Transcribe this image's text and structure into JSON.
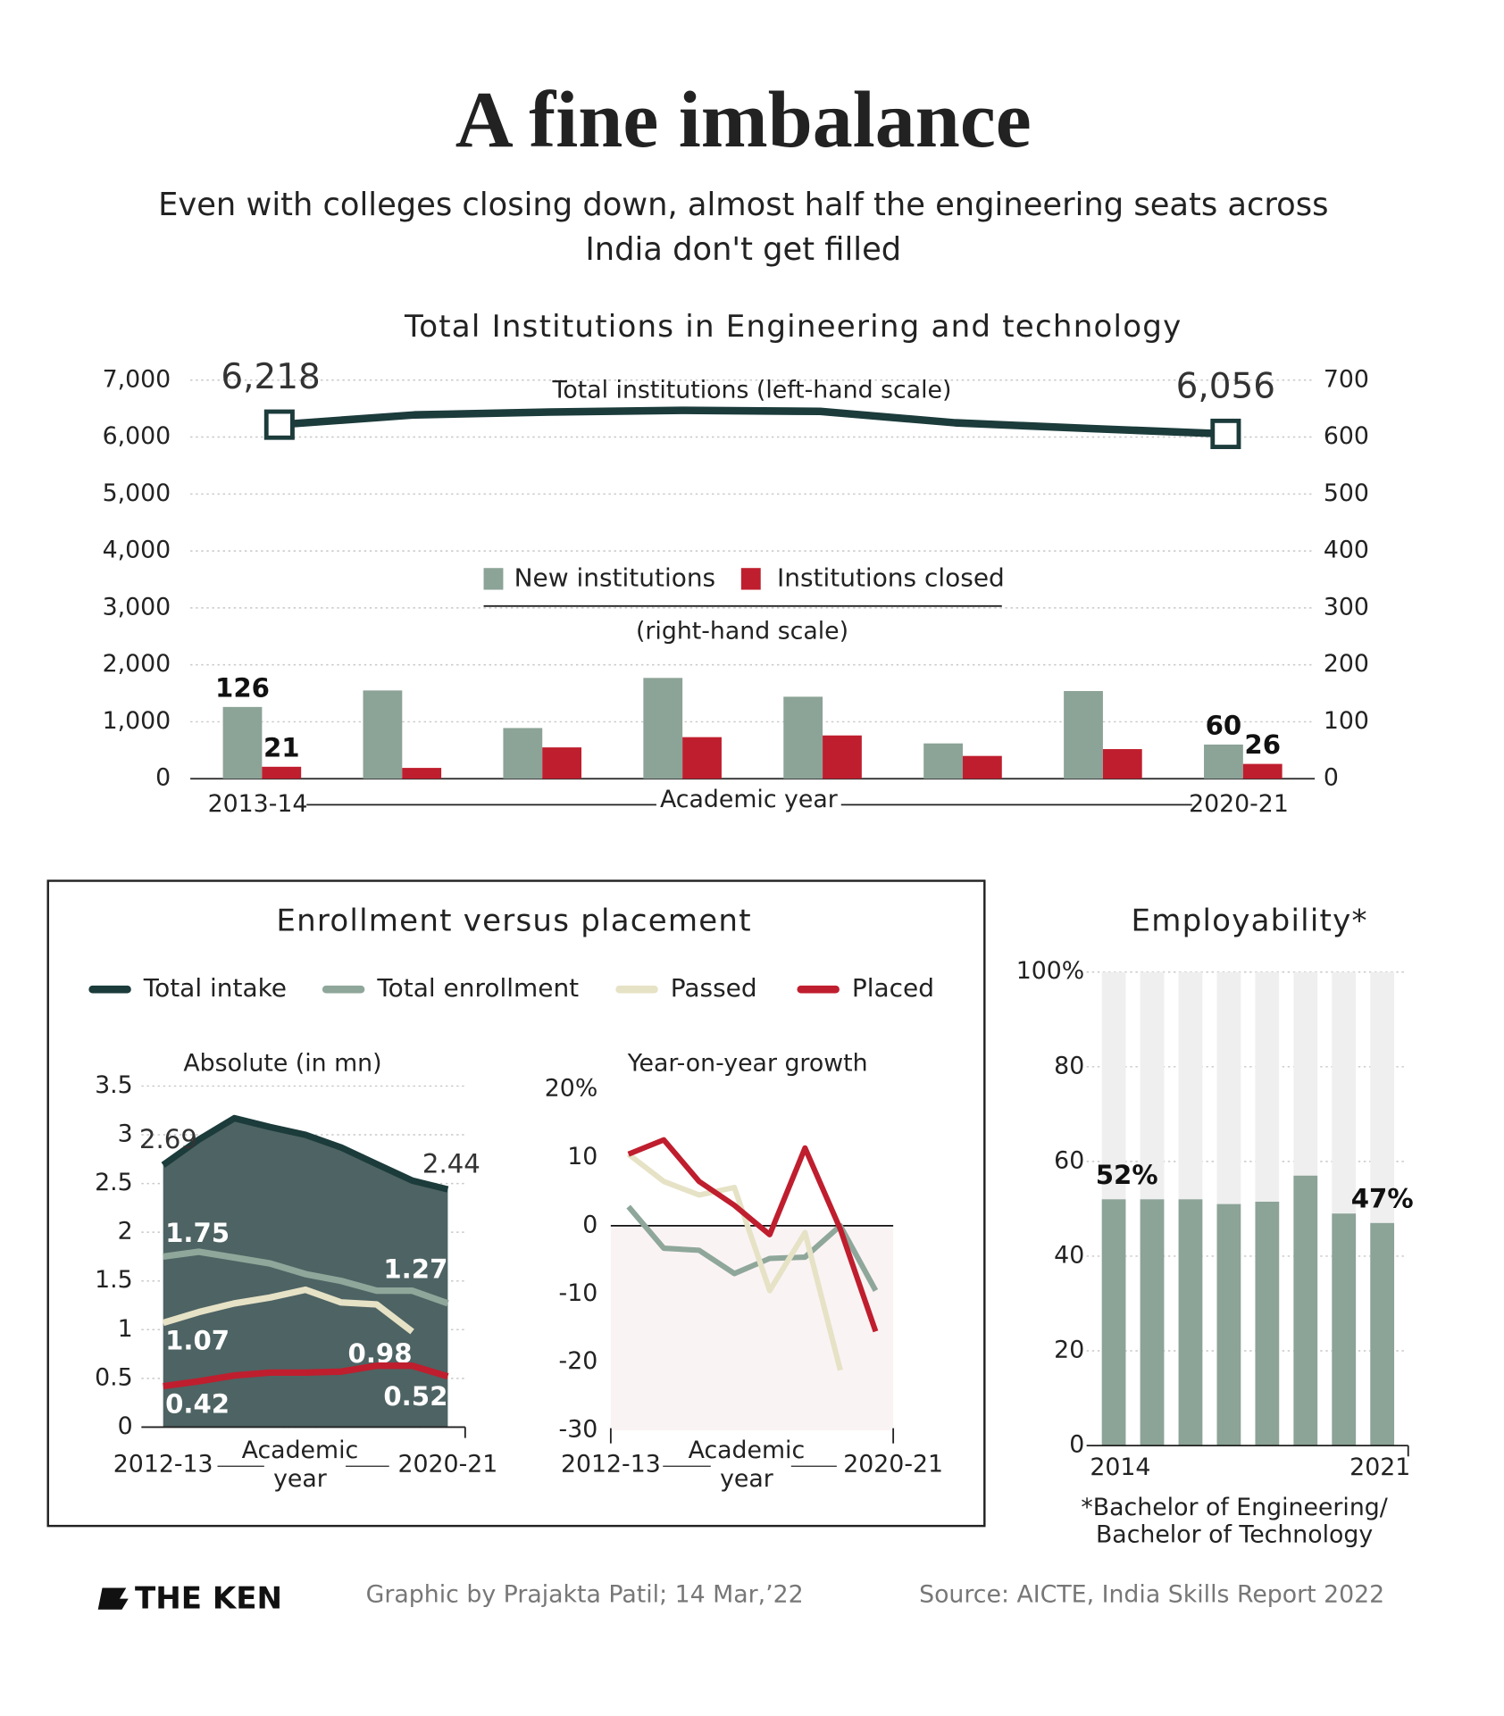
{
  "header": {
    "title": "A fine imbalance",
    "subtitle": [
      "Even with colleges closing down, almost half the engineering seats across",
      "India don't get filled"
    ]
  },
  "panel": {
    "title": "Enrollment versus placement"
  },
  "chart_data": [
    {
      "type": "combo",
      "title": "Total Institutions in Engineering and technology",
      "categories": [
        "2013-14",
        null,
        null,
        null,
        null,
        null,
        null,
        "2020-21"
      ],
      "x_label": "Academic year",
      "ylim": [
        0,
        7000
      ],
      "yticks": [
        0,
        {
          "value": 1000,
          "label": "1,000"
        },
        {
          "value": 2000,
          "label": "2,000"
        },
        {
          "value": 3000,
          "label": "3,000"
        },
        {
          "value": 4000,
          "label": "4,000"
        },
        {
          "value": 5000,
          "label": "5,000"
        },
        {
          "value": 6000,
          "label": "6,000"
        },
        {
          "value": 7000,
          "label": "7,000"
        }
      ],
      "y2lim": [
        0,
        700
      ],
      "y2ticks": [
        0,
        100,
        200,
        300,
        400,
        500,
        600,
        700
      ],
      "grid": true,
      "y2_note": "(right-hand scale)",
      "series": [
        {
          "name": "Total institutions (left-hand scale)",
          "type": "line",
          "color": "#1c3b3b",
          "values": [
            6218,
            6390,
            6440,
            6470,
            6450,
            6250,
            6150,
            6056
          ],
          "value_labels": [
            "6,218",
            null,
            null,
            null,
            null,
            null,
            null,
            "6,056"
          ]
        },
        {
          "name": "New institutions",
          "type": "bar",
          "axis": "y2",
          "color": "#8ca397",
          "values": [
            126,
            155,
            89,
            177,
            144,
            62,
            154,
            60
          ]
        },
        {
          "name": "Institutions closed",
          "type": "bar",
          "axis": "y2",
          "color": "#bf1e2e",
          "values": [
            21,
            19,
            55,
            73,
            76,
            40,
            52,
            26
          ]
        }
      ]
    },
    {
      "type": "area",
      "title": "Absolute (in mn)",
      "categories": [
        "2012-13",
        null,
        null,
        null,
        null,
        null,
        null,
        null,
        "2020-21"
      ],
      "x_label": "Academic year",
      "ylim": [
        0,
        3.5
      ],
      "yticks": [
        0,
        0.5,
        1,
        1.5,
        2,
        2.5,
        3,
        3.5
      ],
      "grid": true,
      "series": [
        {
          "name": "Total intake",
          "color": "#1c3b3b",
          "values": [
            2.69,
            2.95,
            3.17,
            3.08,
            3.0,
            2.87,
            2.7,
            2.53,
            2.44
          ]
        },
        {
          "name": "Total enrollment",
          "color": "#8fa79b",
          "values": [
            1.75,
            1.8,
            1.74,
            1.68,
            1.57,
            1.5,
            1.4,
            1.4,
            1.27
          ]
        },
        {
          "name": "Passed",
          "color": "#e6e2c6",
          "values": [
            1.07,
            1.18,
            1.27,
            1.33,
            1.41,
            1.28,
            1.26,
            0.98,
            null
          ]
        },
        {
          "name": "Placed",
          "color": "#bf1e2e",
          "values": [
            0.42,
            0.47,
            0.53,
            0.56,
            0.56,
            0.57,
            0.63,
            0.63,
            0.52
          ]
        }
      ]
    },
    {
      "type": "line",
      "title": "Year-on-year growth",
      "categories": [
        "2012-13",
        null,
        null,
        null,
        null,
        null,
        null,
        "2020-21"
      ],
      "x_label": "Academic year",
      "ylim": [
        -30,
        20
      ],
      "yticks": [
        -30,
        -20,
        -10,
        0,
        10,
        {
          "value": 20,
          "label": "20%"
        }
      ],
      "series": [
        {
          "name": "Total enrollment",
          "color": "#8fa79b",
          "values": [
            2.8,
            -3.3,
            -3.6,
            -7,
            -4.8,
            -4.6,
            0,
            -9.5
          ]
        },
        {
          "name": "Passed",
          "color": "#e6e2c6",
          "values": [
            10.5,
            6.5,
            4.5,
            5.6,
            -9.5,
            -1,
            -21.2,
            null
          ]
        },
        {
          "name": "Placed",
          "color": "#bf1e2e",
          "values": [
            10.5,
            12.6,
            6.5,
            3,
            -1.3,
            11.4,
            -0.5,
            -15.5
          ]
        }
      ]
    },
    {
      "type": "bar",
      "title": "Employability*",
      "categories": [
        "2014",
        null,
        null,
        null,
        null,
        null,
        null,
        "2021"
      ],
      "values": [
        52,
        52,
        52,
        51,
        51.5,
        57,
        49,
        47
      ],
      "value_labels": [
        "52%",
        null,
        null,
        null,
        null,
        null,
        null,
        "47%"
      ],
      "color": "#8ca397",
      "ylim": [
        0,
        100
      ],
      "yticks": [
        0,
        20,
        40,
        60,
        80,
        {
          "value": 100,
          "label": "100%"
        }
      ],
      "grid": true,
      "footnote": [
        "*Bachelor of Engineering/",
        "Bachelor of Technology"
      ]
    }
  ],
  "footer": {
    "brand": "THE KEN",
    "credit": "Graphic by Prajakta Patil; 14 Mar,’22",
    "source": "Source: AICTE, India Skills Report 2022"
  }
}
